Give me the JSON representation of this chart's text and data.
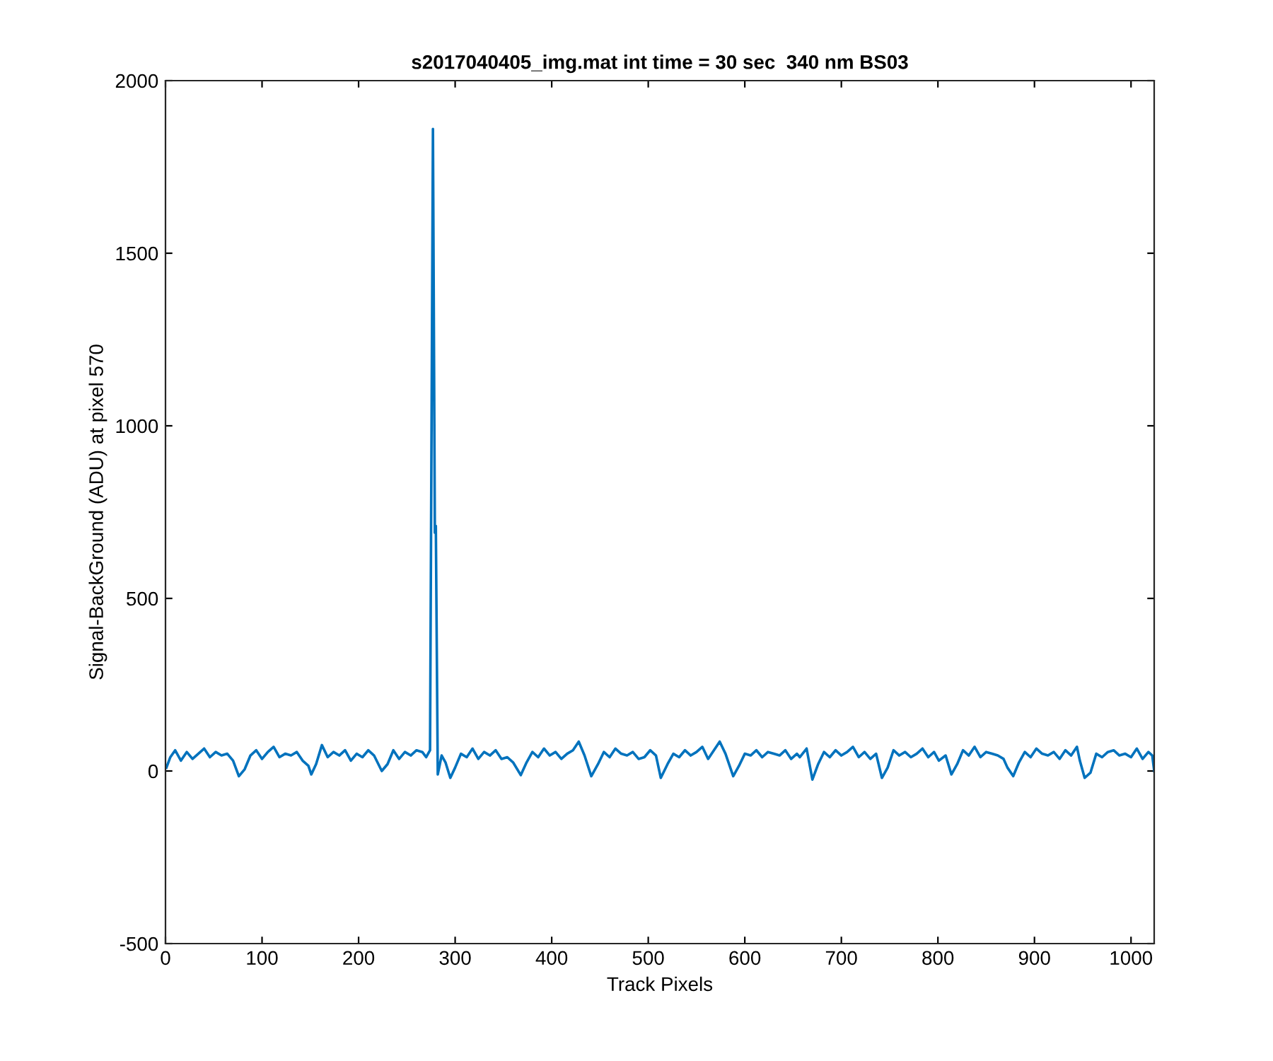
{
  "chart_data": {
    "type": "line",
    "title": "s2017040405_img.mat int time = 30 sec  340 nm BS03",
    "xlabel": "Track Pixels",
    "ylabel": "Signal-BackGround (ADU) at pixel 570",
    "x": [
      1,
      5,
      10,
      16,
      22,
      28,
      34,
      40,
      46,
      52,
      58,
      64,
      70,
      76,
      82,
      88,
      94,
      100,
      106,
      112,
      118,
      124,
      130,
      136,
      142,
      148,
      151,
      156,
      162,
      168,
      174,
      180,
      186,
      192,
      198,
      204,
      210,
      216,
      224,
      230,
      236,
      242,
      248,
      254,
      260,
      266,
      270,
      274,
      277,
      279,
      280,
      282,
      286,
      290,
      295,
      300,
      306,
      312,
      318,
      324,
      330,
      336,
      342,
      348,
      354,
      360,
      368,
      374,
      380,
      386,
      392,
      398,
      404,
      410,
      416,
      422,
      428,
      434,
      441,
      448,
      454,
      460,
      466,
      472,
      478,
      484,
      490,
      496,
      502,
      508,
      513,
      520,
      526,
      532,
      538,
      544,
      550,
      556,
      562,
      568,
      574,
      580,
      588,
      594,
      600,
      606,
      612,
      618,
      624,
      630,
      636,
      642,
      648,
      654,
      657,
      664,
      670,
      676,
      682,
      688,
      694,
      700,
      706,
      712,
      718,
      724,
      730,
      736,
      742,
      748,
      754,
      760,
      766,
      772,
      778,
      784,
      790,
      796,
      801,
      808,
      814,
      820,
      826,
      832,
      838,
      844,
      850,
      856,
      862,
      868,
      872,
      878,
      884,
      890,
      896,
      902,
      908,
      914,
      920,
      926,
      932,
      938,
      944,
      947,
      952,
      958,
      964,
      970,
      976,
      982,
      988,
      994,
      1000,
      1006,
      1012,
      1018,
      1022,
      1024
    ],
    "series": [
      {
        "color": "#0072bd",
        "values": [
          10,
          40,
          60,
          30,
          55,
          35,
          50,
          65,
          40,
          55,
          45,
          50,
          30,
          -15,
          5,
          45,
          60,
          35,
          55,
          70,
          40,
          50,
          45,
          55,
          30,
          15,
          -10,
          20,
          75,
          40,
          55,
          45,
          60,
          30,
          50,
          40,
          60,
          45,
          0,
          20,
          60,
          35,
          55,
          45,
          60,
          55,
          40,
          60,
          1860,
          690,
          710,
          -10,
          45,
          25,
          -20,
          10,
          50,
          40,
          65,
          35,
          55,
          45,
          60,
          35,
          40,
          25,
          -12,
          25,
          55,
          40,
          65,
          45,
          55,
          35,
          50,
          60,
          85,
          45,
          -15,
          20,
          55,
          40,
          65,
          50,
          45,
          55,
          35,
          40,
          60,
          45,
          -20,
          20,
          50,
          40,
          60,
          45,
          55,
          70,
          35,
          60,
          85,
          50,
          -15,
          15,
          50,
          45,
          60,
          40,
          55,
          50,
          45,
          60,
          35,
          50,
          40,
          65,
          -25,
          20,
          55,
          40,
          60,
          45,
          55,
          70,
          40,
          55,
          35,
          50,
          -20,
          10,
          60,
          45,
          55,
          40,
          50,
          65,
          40,
          55,
          30,
          45,
          -10,
          20,
          60,
          45,
          70,
          40,
          55,
          50,
          45,
          35,
          10,
          -15,
          25,
          55,
          40,
          65,
          50,
          45,
          55,
          35,
          60,
          45,
          70,
          30,
          -20,
          -5,
          50,
          40,
          55,
          60,
          45,
          50,
          40,
          65,
          35,
          55,
          45,
          0
        ]
      }
    ],
    "xlim": [
      0,
      1024
    ],
    "ylim": [
      -500,
      2000
    ],
    "xticks": [
      0,
      100,
      200,
      300,
      400,
      500,
      600,
      700,
      800,
      900,
      1000
    ],
    "yticks": [
      -500,
      0,
      500,
      1000,
      1500,
      2000
    ],
    "grid": false,
    "line_style": "solid",
    "marker": "none"
  }
}
